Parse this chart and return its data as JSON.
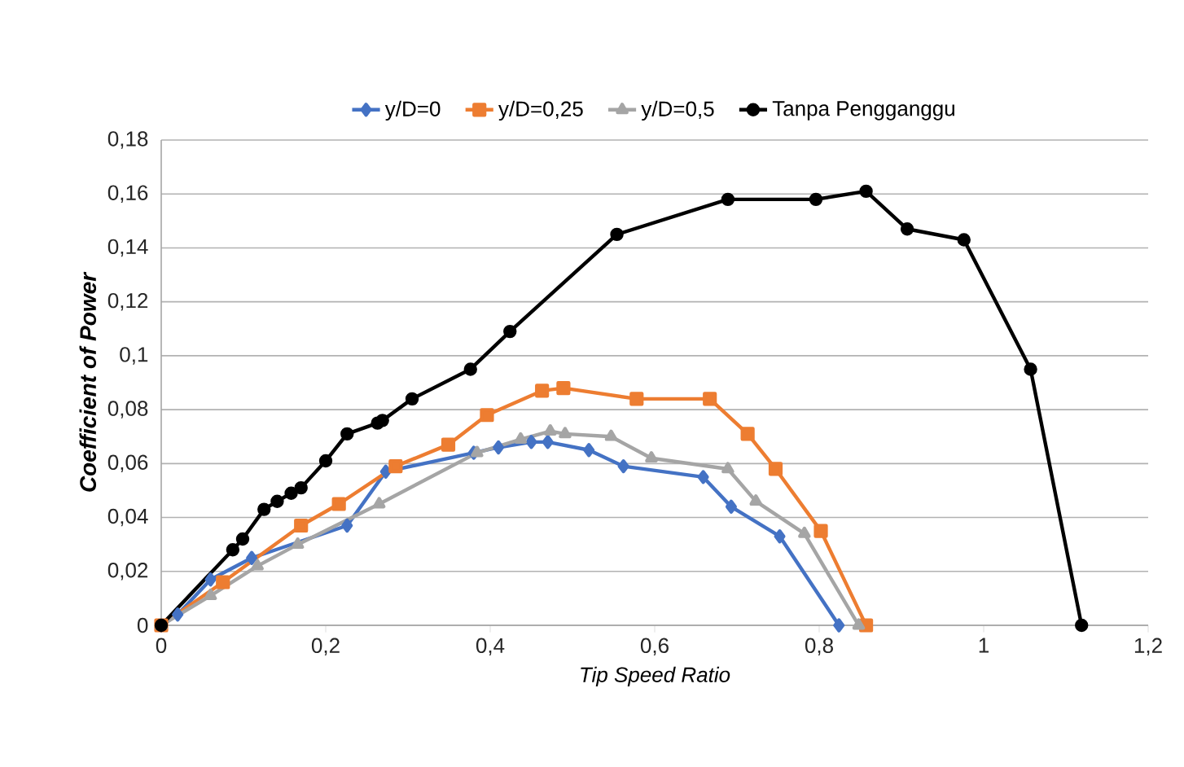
{
  "chart_data": {
    "type": "line",
    "xlabel": "Tip Speed Ratio",
    "ylabel": "Coefficient of Power",
    "xlim": [
      0,
      1.2
    ],
    "ylim": [
      0,
      0.18
    ],
    "xticks": [
      {
        "value": 0,
        "label": "0"
      },
      {
        "value": 0.2,
        "label": "0,2"
      },
      {
        "value": 0.4,
        "label": "0,4"
      },
      {
        "value": 0.6,
        "label": "0,6"
      },
      {
        "value": 0.8,
        "label": "0,8"
      },
      {
        "value": 1,
        "label": "1"
      },
      {
        "value": 1.2,
        "label": "1,2"
      }
    ],
    "yticks": [
      {
        "value": 0,
        "label": "0"
      },
      {
        "value": 0.02,
        "label": "0,02"
      },
      {
        "value": 0.04,
        "label": "0,04"
      },
      {
        "value": 0.06,
        "label": "0,06"
      },
      {
        "value": 0.08,
        "label": "0,08"
      },
      {
        "value": 0.1,
        "label": "0,1"
      },
      {
        "value": 0.12,
        "label": "0,12"
      },
      {
        "value": 0.14,
        "label": "0,14"
      },
      {
        "value": 0.16,
        "label": "0,16"
      },
      {
        "value": 0.18,
        "label": "0,18"
      }
    ],
    "grid": "y",
    "legend": "top",
    "series": [
      {
        "name": "y/D=0",
        "color": "#4472c4",
        "marker": "diamond",
        "x": [
          0,
          0.02,
          0.06,
          0.11,
          0.226,
          0.273,
          0.38,
          0.41,
          0.45,
          0.47,
          0.52,
          0.562,
          0.659,
          0.693,
          0.752,
          0.824
        ],
        "values": [
          0,
          0.004,
          0.017,
          0.025,
          0.037,
          0.057,
          0.064,
          0.066,
          0.068,
          0.068,
          0.065,
          0.059,
          0.055,
          0.044,
          0.033,
          0
        ]
      },
      {
        "name": "y/D=0,25",
        "color": "#ed7d31",
        "marker": "square",
        "x": [
          0,
          0.075,
          0.17,
          0.216,
          0.285,
          0.349,
          0.396,
          0.463,
          0.489,
          0.578,
          0.667,
          0.713,
          0.747,
          0.802,
          0.857
        ],
        "values": [
          0,
          0.016,
          0.037,
          0.045,
          0.059,
          0.067,
          0.078,
          0.087,
          0.088,
          0.084,
          0.084,
          0.071,
          0.058,
          0.035,
          0
        ]
      },
      {
        "name": "y/D=0,5",
        "color": "#a5a5a5",
        "marker": "triangle",
        "x": [
          0,
          0.06,
          0.117,
          0.166,
          0.265,
          0.384,
          0.437,
          0.473,
          0.491,
          0.547,
          0.596,
          0.689,
          0.723,
          0.782,
          0.848
        ],
        "values": [
          0,
          0.011,
          0.022,
          0.03,
          0.045,
          0.064,
          0.069,
          0.072,
          0.071,
          0.07,
          0.062,
          0.058,
          0.046,
          0.034,
          0
        ]
      },
      {
        "name": "Tanpa Pengganggu",
        "color": "#000000",
        "marker": "circle",
        "x": [
          0,
          0.087,
          0.099,
          0.125,
          0.141,
          0.158,
          0.17,
          0.2,
          0.226,
          0.263,
          0.269,
          0.305,
          0.376,
          0.424,
          0.554,
          0.689,
          0.796,
          0.857,
          0.907,
          0.976,
          1.057,
          1.119
        ],
        "values": [
          0,
          0.028,
          0.032,
          0.043,
          0.046,
          0.049,
          0.051,
          0.061,
          0.071,
          0.075,
          0.076,
          0.084,
          0.095,
          0.109,
          0.145,
          0.158,
          0.158,
          0.161,
          0.147,
          0.143,
          0.095,
          0
        ]
      }
    ]
  }
}
